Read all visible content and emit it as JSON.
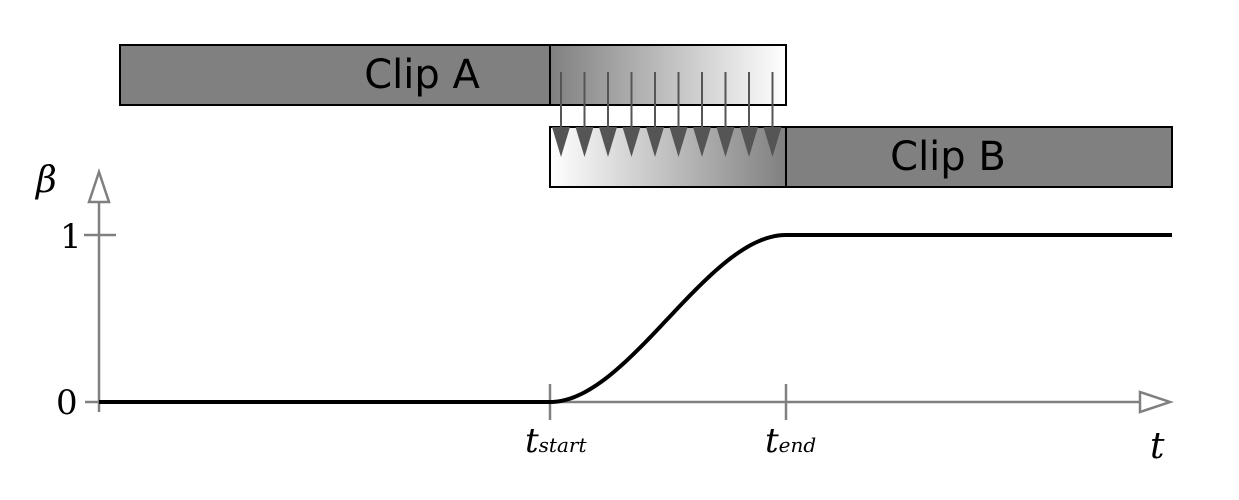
{
  "clip_a": {
    "label": "Clip A",
    "fill": "#808080"
  },
  "clip_b": {
    "label": "Clip B",
    "fill": "#808080"
  },
  "axes": {
    "y_symbol": "β",
    "x_symbol": "t",
    "y_tick_1": "1",
    "y_tick_0": "0",
    "t_start_base": "t",
    "t_start_sub": "start",
    "t_end_base": "t",
    "t_end_sub": "end"
  },
  "curve": {
    "type": "smoothstep",
    "beta_before_start": 0,
    "beta_after_end": 1
  },
  "colors": {
    "axis": "#808080",
    "curve": "#000000",
    "arrow": "#555555"
  }
}
